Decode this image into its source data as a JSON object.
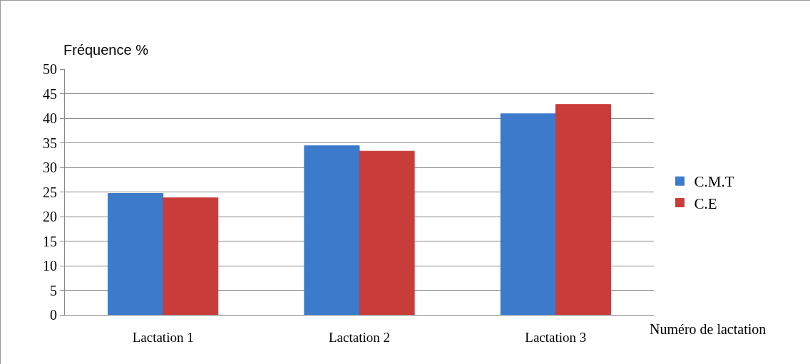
{
  "chart_data": {
    "type": "bar",
    "ylabel": "Fréquence %",
    "xlabel": "Numéro de lactation",
    "categories": [
      "Lactation 1",
      "Lactation 2",
      "Lactation 3"
    ],
    "series": [
      {
        "name": "C.M.T",
        "color": "#3c7bcc",
        "values": [
          24.7,
          34.4,
          40.9
        ]
      },
      {
        "name": "C.E",
        "color": "#c83c3a",
        "values": [
          23.8,
          33.3,
          42.8
        ]
      }
    ],
    "ylim": [
      0,
      50
    ],
    "yticks": [
      0,
      5,
      10,
      15,
      20,
      25,
      30,
      35,
      40,
      45,
      50
    ],
    "grid": "y",
    "legend": "right"
  }
}
